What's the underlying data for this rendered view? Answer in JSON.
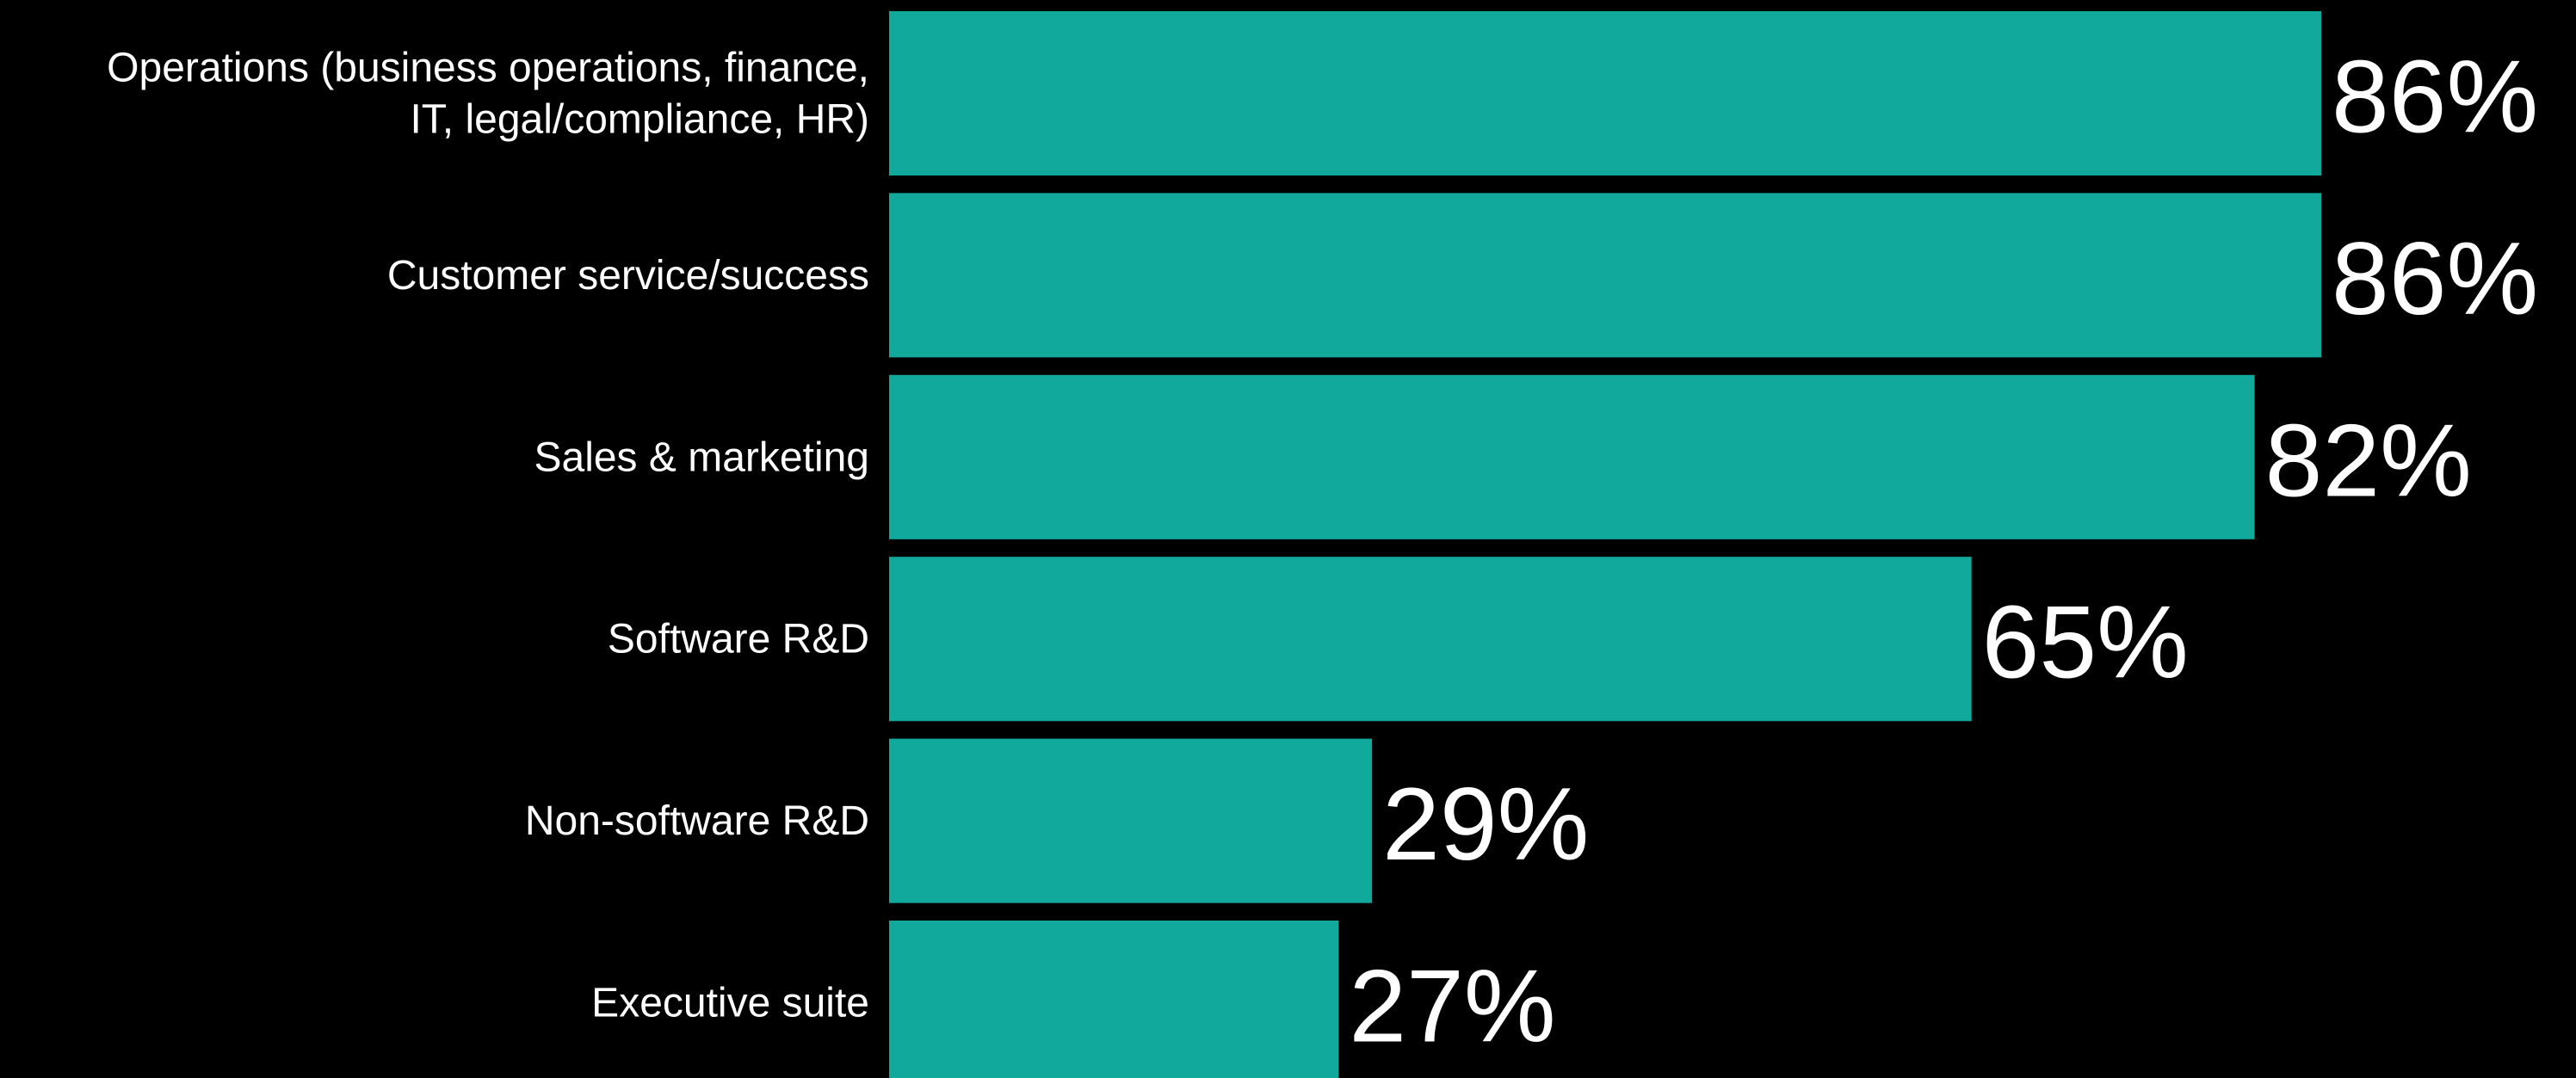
{
  "chart_data": {
    "type": "bar",
    "orientation": "horizontal",
    "categories": [
      [
        "Operations (business operations, finance,",
        "IT, legal/compliance, HR)"
      ],
      [
        "Customer service/success"
      ],
      [
        "Sales & marketing"
      ],
      [
        "Software R&D"
      ],
      [
        "Non-software R&D"
      ],
      [
        "Executive suite"
      ]
    ],
    "values": [
      86,
      86,
      82,
      65,
      29,
      27
    ],
    "value_labels": [
      "86%",
      "86%",
      "82%",
      "65%",
      "29%",
      "27%"
    ],
    "title": "",
    "xlabel": "",
    "ylabel": "",
    "xlim": [
      0,
      100
    ],
    "grid": false,
    "legend": "none",
    "colors": {
      "bar": "#12A99D",
      "background": "#000000",
      "text": "#FFFFFF"
    }
  }
}
